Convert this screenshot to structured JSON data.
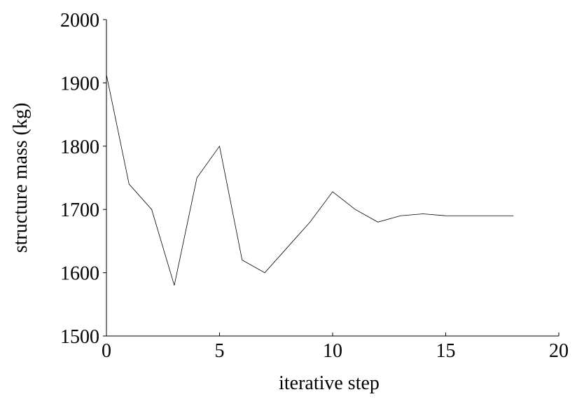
{
  "chart_data": {
    "type": "line",
    "x_label": "iterative step",
    "y_label": "structure mass (kg)",
    "x": [
      0,
      1,
      2,
      3,
      4,
      5,
      6,
      7,
      8,
      9,
      10,
      11,
      12,
      13,
      14,
      15,
      16,
      17,
      18
    ],
    "series": [
      {
        "color": "#000000",
        "values": [
          1913,
          1740,
          1700,
          1580,
          1750,
          1800,
          1620,
          1600,
          1640,
          1680,
          1728,
          1700,
          1680,
          1690,
          1693,
          1690,
          1690,
          1690,
          1690
        ]
      }
    ],
    "xlim": [
      0,
      20
    ],
    "xticks": [
      0,
      5,
      10,
      15,
      20
    ],
    "ylim": [
      1500,
      2000
    ],
    "yticks": [
      1500,
      1600,
      1700,
      1800,
      1900,
      2000
    ],
    "grid": false
  }
}
